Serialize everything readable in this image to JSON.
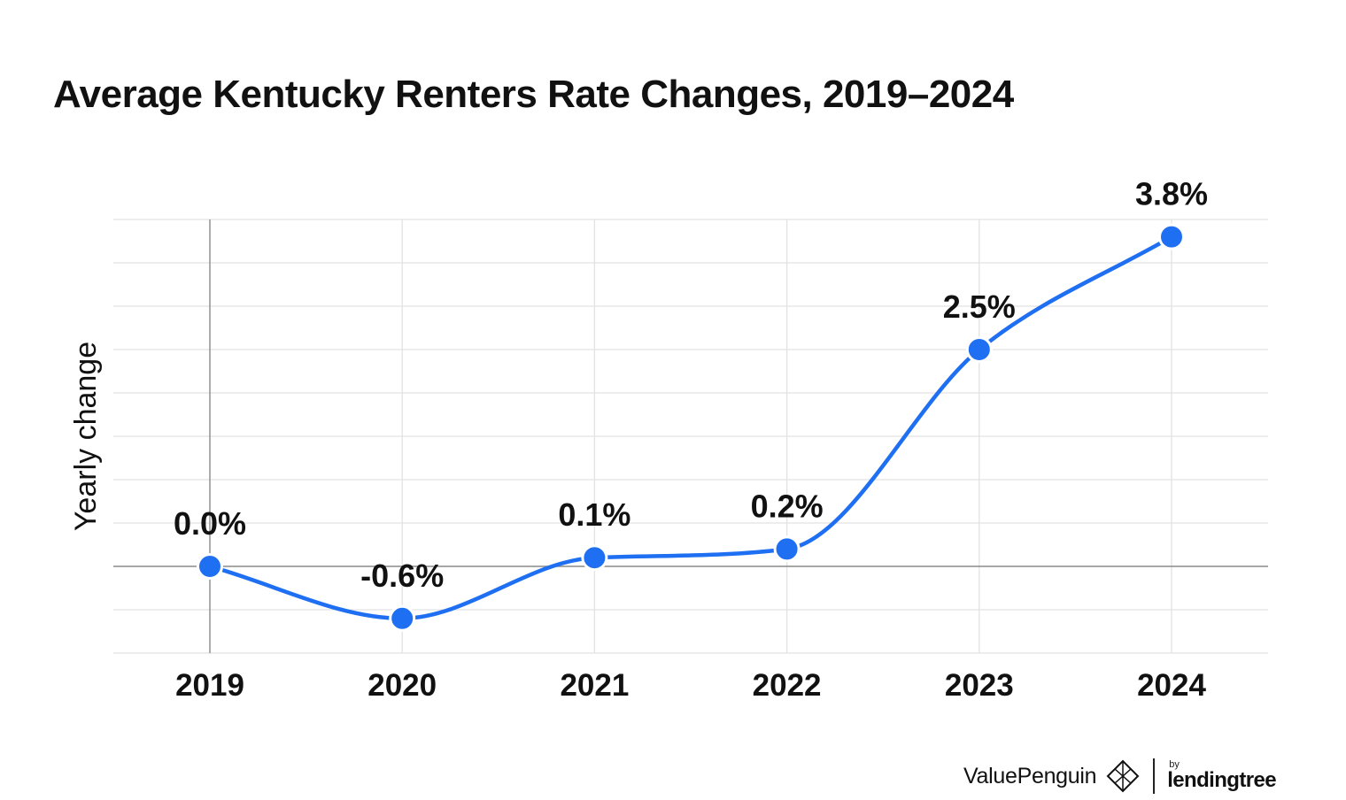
{
  "chart_data": {
    "type": "line",
    "title": "Average Kentucky Renters Rate Changes, 2019–2024",
    "xlabel": "",
    "ylabel": "Yearly change",
    "categories": [
      "2019",
      "2020",
      "2021",
      "2022",
      "2023",
      "2024"
    ],
    "series": [
      {
        "name": "Yearly change",
        "values": [
          0.0,
          -0.6,
          0.1,
          0.2,
          2.5,
          3.8
        ],
        "labels": [
          "0.0%",
          "-0.6%",
          "0.1%",
          "0.2%",
          "2.5%",
          "3.8%"
        ]
      }
    ],
    "ylim": [
      -1.0,
      4.0
    ],
    "grid": true,
    "line_color": "#1f6ff2"
  },
  "brand": {
    "name": "ValuePenguin",
    "by": "by",
    "parent": "lendingtree"
  }
}
